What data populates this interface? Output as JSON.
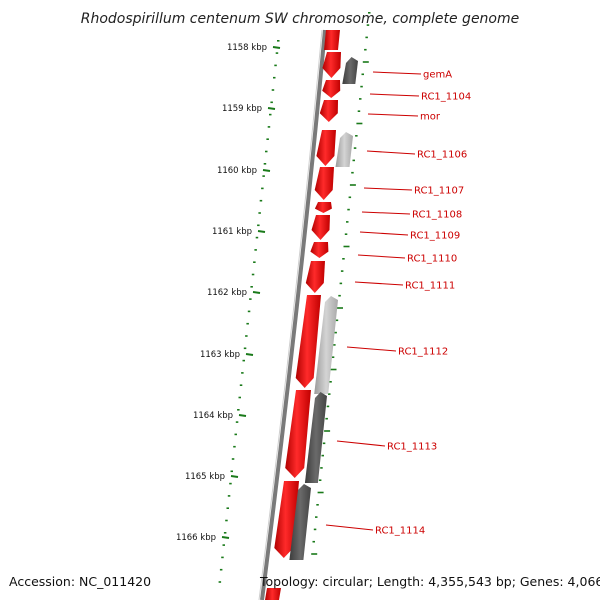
{
  "title": "Rhodospirillum centenum SW chromosome, complete genome",
  "accession": "Accession: NC_011420",
  "topology": "Topology: circular; Length: 4,355,543 bp; Genes: 4,066",
  "colors": {
    "forward_gene": "#e00000",
    "rc_gene_dark": "#555555",
    "rc_gene_light": "#b8b8b8",
    "backbone": "#777777",
    "ticks": "#1a7a1a",
    "label": "#cc0000"
  },
  "kbp_ticks": [
    "1158 kbp",
    "1159 kbp",
    "1160 kbp",
    "1161 kbp",
    "1162 kbp",
    "1163 kbp",
    "1164 kbp",
    "1165 kbp",
    "1166 kbp"
  ],
  "genes": [
    {
      "label": "gemA",
      "strand": "reverse",
      "shade": "dark"
    },
    {
      "label": "RC1_1104",
      "strand": "forward"
    },
    {
      "label": "mor",
      "strand": "forward"
    },
    {
      "label": "RC1_1106",
      "strand": "reverse",
      "shade": "light"
    },
    {
      "label": "RC1_1107",
      "strand": "forward"
    },
    {
      "label": "RC1_1108",
      "strand": "forward"
    },
    {
      "label": "RC1_1109",
      "strand": "forward"
    },
    {
      "label": "RC1_1110",
      "strand": "forward"
    },
    {
      "label": "RC1_1111",
      "strand": "forward"
    },
    {
      "label": "RC1_1112",
      "strand": "reverse",
      "shade": "light"
    },
    {
      "label": "RC1_1113",
      "strand": "reverse",
      "shade": "dark"
    },
    {
      "label": "RC1_1114",
      "strand": "forward"
    }
  ]
}
